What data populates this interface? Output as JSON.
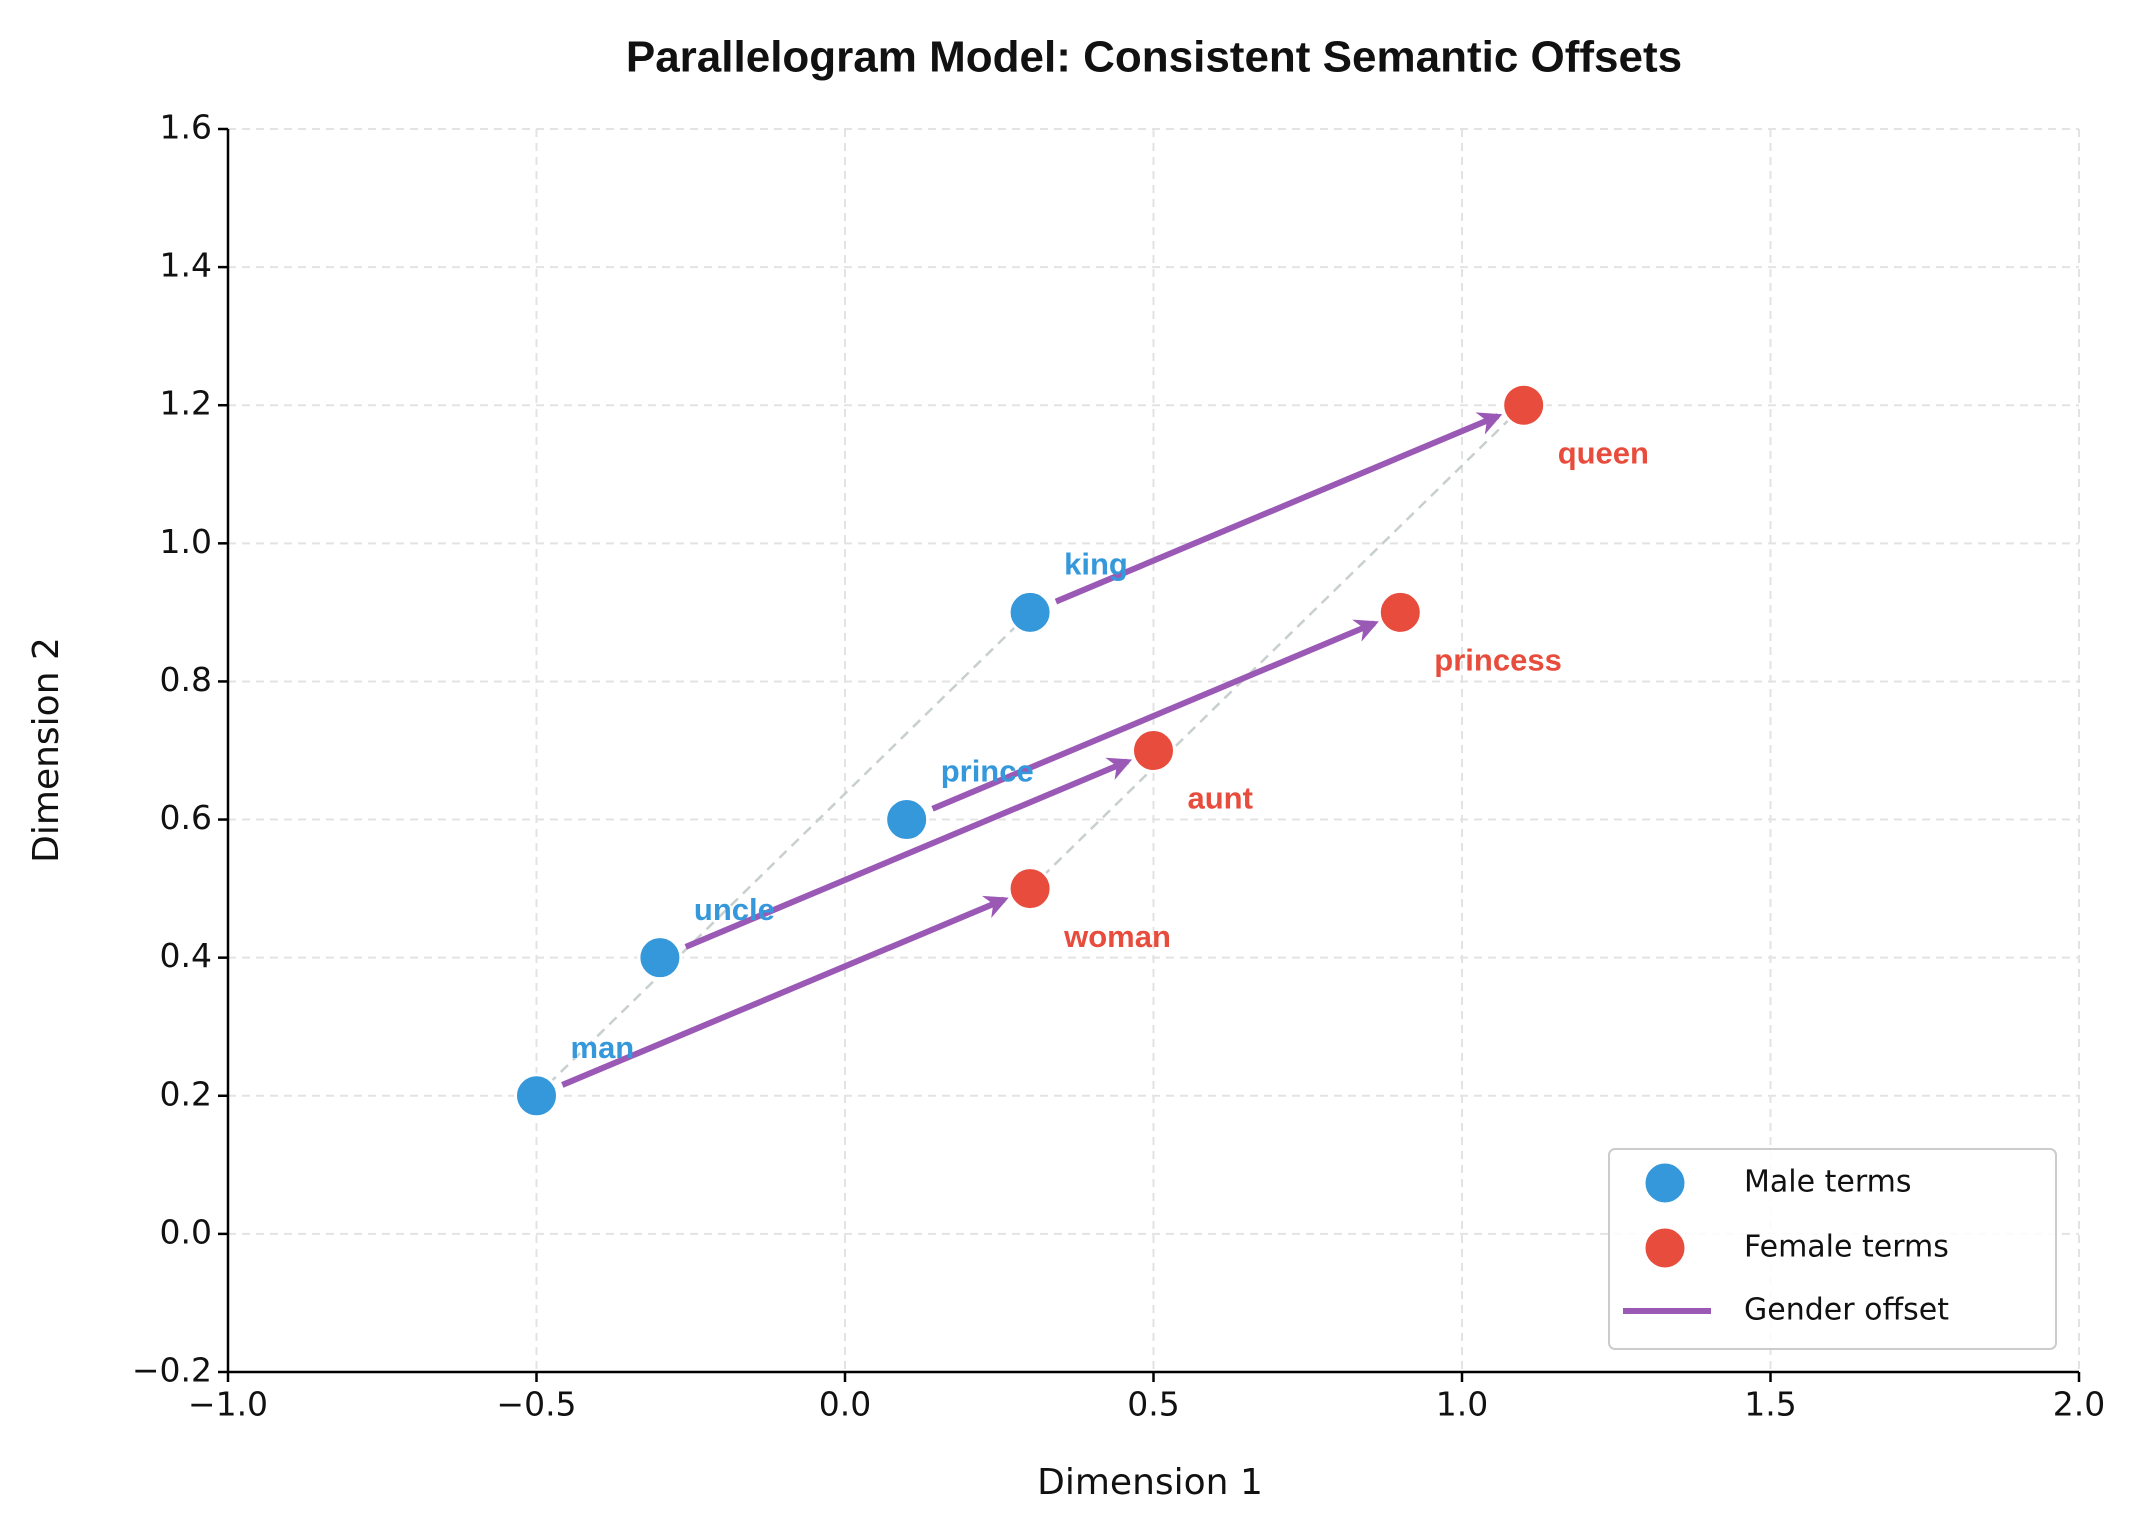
{
  "chart_data": {
    "type": "scatter",
    "title": "Parallelogram Model: Consistent Semantic Offsets",
    "xlabel": "Dimension 1",
    "ylabel": "Dimension 2",
    "xlim": [
      -1.0,
      2.0
    ],
    "xticks": [
      {
        "value": -1.0,
        "label": "−1.0"
      },
      {
        "value": -0.5,
        "label": "−0.5"
      },
      {
        "value": 0.0,
        "label": "0.0"
      },
      {
        "value": 0.5,
        "label": "0.5"
      },
      {
        "value": 1.0,
        "label": "1.0"
      },
      {
        "value": 1.5,
        "label": "1.5"
      },
      {
        "value": 2.0,
        "label": "2.0"
      }
    ],
    "ylim": [
      -0.2,
      1.6
    ],
    "yticks": [
      {
        "value": -0.2,
        "label": "−0.2"
      },
      {
        "value": 0.0,
        "label": "0.0"
      },
      {
        "value": 0.2,
        "label": "0.2"
      },
      {
        "value": 0.4,
        "label": "0.4"
      },
      {
        "value": 0.6,
        "label": "0.6"
      },
      {
        "value": 0.8,
        "label": "0.8"
      },
      {
        "value": 1.0,
        "label": "1.0"
      },
      {
        "value": 1.2,
        "label": "1.2"
      },
      {
        "value": 1.4,
        "label": "1.4"
      },
      {
        "value": 1.6,
        "label": "1.6"
      }
    ],
    "grid": true,
    "legend": "lower right",
    "series": [
      {
        "name": "Male terms",
        "color": "#3498db",
        "labels": [
          "man",
          "uncle",
          "prince",
          "king"
        ],
        "x": [
          -0.5,
          -0.3,
          0.1,
          0.3
        ],
        "values": [
          0.2,
          0.4,
          0.6,
          0.9
        ]
      },
      {
        "name": "Female terms",
        "color": "#e74c3c",
        "labels": [
          "woman",
          "aunt",
          "princess",
          "queen"
        ],
        "x": [
          0.3,
          0.5,
          0.9,
          1.1
        ],
        "values": [
          0.5,
          0.7,
          0.9,
          1.2
        ]
      }
    ],
    "offset": {
      "name": "Gender offset",
      "color": "#9b59b6"
    }
  }
}
